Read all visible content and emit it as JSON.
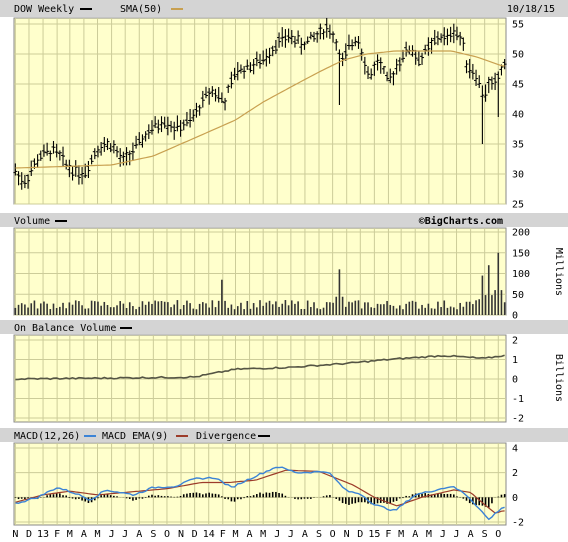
{
  "colors": {
    "plot_bg": "#ffffcc",
    "grid": "#cccc99",
    "header_bg": "#d4d4d4",
    "price_bar": "#000000",
    "sma": "#c8a050",
    "volume": "#333333",
    "obv": "#555544",
    "macd": "#3b83d6",
    "macd_ema": "#9c3c2a",
    "divergence": "#000000"
  },
  "header": {
    "symbol_label": "DOW Weekly",
    "sma_label": "SMA(50)",
    "date": "10/18/15"
  },
  "chart_data": [
    {
      "type": "ohlc",
      "name": "DOW Weekly",
      "series": [
        {
          "name": "DOW Weekly"
        },
        {
          "name": "SMA(50)"
        }
      ],
      "anchors_price": [
        [
          "2012-11-01",
          30.5
        ],
        [
          "2012-11-20",
          28.5
        ],
        [
          "2012-12-25",
          33
        ],
        [
          "2013-01-25",
          34
        ],
        [
          "2013-03-01",
          31
        ],
        [
          "2013-04-01",
          30
        ],
        [
          "2013-05-01",
          34.5
        ],
        [
          "2013-06-01",
          35
        ],
        [
          "2013-06-25",
          32
        ],
        [
          "2013-08-01",
          35
        ],
        [
          "2013-08-20",
          37
        ],
        [
          "2013-09-25",
          39
        ],
        [
          "2013-10-20",
          37.5
        ],
        [
          "2013-11-25",
          39
        ],
        [
          "2013-12-25",
          43
        ],
        [
          "2014-01-10",
          44
        ],
        [
          "2014-02-05",
          42
        ],
        [
          "2014-03-01",
          47
        ],
        [
          "2014-04-01",
          48
        ],
        [
          "2014-05-01",
          49
        ],
        [
          "2014-06-01",
          52
        ],
        [
          "2014-07-01",
          53
        ],
        [
          "2014-07-25",
          51.5
        ],
        [
          "2014-08-25",
          53
        ],
        [
          "2014-09-20",
          54.5
        ],
        [
          "2014-10-10",
          52
        ],
        [
          "2014-10-20",
          48
        ],
        [
          "2014-11-05",
          51
        ],
        [
          "2014-11-25",
          53
        ],
        [
          "2014-12-10",
          49
        ],
        [
          "2014-12-20",
          46
        ],
        [
          "2015-01-10",
          49
        ],
        [
          "2015-02-01",
          45
        ],
        [
          "2015-02-25",
          49
        ],
        [
          "2015-03-20",
          51
        ],
        [
          "2015-04-10",
          49
        ],
        [
          "2015-05-01",
          51
        ],
        [
          "2015-05-25",
          53
        ],
        [
          "2015-06-10",
          52.5
        ],
        [
          "2015-06-25",
          54
        ],
        [
          "2015-07-15",
          52
        ],
        [
          "2015-07-25",
          48
        ],
        [
          "2015-08-10",
          47
        ],
        [
          "2015-08-25",
          44
        ],
        [
          "2015-09-01",
          43
        ],
        [
          "2015-09-10",
          45
        ],
        [
          "2015-09-25",
          45
        ],
        [
          "2015-10-10",
          48
        ]
      ],
      "anchors_sma": [
        [
          "2012-11-01",
          31
        ],
        [
          "2013-06-01",
          31.5
        ],
        [
          "2013-09-01",
          33
        ],
        [
          "2013-12-01",
          36
        ],
        [
          "2014-03-01",
          39
        ],
        [
          "2014-05-01",
          42
        ],
        [
          "2014-07-01",
          44.5
        ],
        [
          "2014-09-01",
          47
        ],
        [
          "2014-10-25",
          49
        ],
        [
          "2014-12-15",
          50
        ],
        [
          "2015-02-15",
          50.5
        ],
        [
          "2015-05-01",
          50.5
        ],
        [
          "2015-06-20",
          50.5
        ],
        [
          "2015-08-15",
          49.5
        ],
        [
          "2015-10-10",
          48
        ]
      ],
      "spikes": [
        {
          "date": "2014-10-15",
          "low": 41.5
        },
        {
          "date": "2015-08-24",
          "low": 35
        },
        {
          "date": "2015-09-28",
          "low": 39.5
        }
      ],
      "y_ticks": [
        25,
        30,
        35,
        40,
        45,
        50,
        55
      ],
      "ylim": [
        25,
        56
      ]
    },
    {
      "type": "bar",
      "name": "Volume",
      "series": [
        {
          "name": "Volume"
        }
      ],
      "ylabel": "Millions",
      "y_ticks": [
        0,
        50,
        100,
        150,
        200
      ],
      "ylim": [
        0,
        200
      ],
      "baseline": 25,
      "spikes": [
        {
          "date": "2014-01-30",
          "value": 85
        },
        {
          "date": "2014-10-15",
          "value": 110
        },
        {
          "date": "2015-08-24",
          "value": 95
        },
        {
          "date": "2015-09-07",
          "value": 120
        },
        {
          "date": "2015-09-28",
          "value": 150
        }
      ],
      "watermark": "©BigCharts.com"
    },
    {
      "type": "line",
      "name": "On Balance Volume",
      "series": [
        {
          "name": "On Balance Volume"
        }
      ],
      "ylabel": "Billions",
      "y_ticks": [
        -2,
        -1,
        0,
        1,
        2
      ],
      "ylim": [
        -2,
        2
      ],
      "anchors": [
        [
          "2012-11-01",
          0
        ],
        [
          "2013-06-01",
          0.05
        ],
        [
          "2013-12-01",
          0.1
        ],
        [
          "2014-03-01",
          0.5
        ],
        [
          "2014-07-01",
          0.6
        ],
        [
          "2014-11-01",
          0.8
        ],
        [
          "2015-02-01",
          1.0
        ],
        [
          "2015-06-01",
          1.2
        ],
        [
          "2015-09-01",
          1.05
        ],
        [
          "2015-10-10",
          1.2
        ]
      ]
    },
    {
      "type": "line",
      "name": "MACD",
      "series": [
        {
          "name": "MACD(12,26)"
        },
        {
          "name": "MACD EMA(9)"
        },
        {
          "name": "Divergence"
        }
      ],
      "y_ticks": [
        -2,
        0,
        2,
        4
      ],
      "ylim": [
        -2,
        4
      ],
      "anchors_macd": [
        [
          "2012-11-01",
          -0.5
        ],
        [
          "2012-12-20",
          0
        ],
        [
          "2013-02-01",
          0.8
        ],
        [
          "2013-03-15",
          0.3
        ],
        [
          "2013-04-15",
          -0.2
        ],
        [
          "2013-05-20",
          0.6
        ],
        [
          "2013-06-20",
          0.4
        ],
        [
          "2013-07-20",
          0.2
        ],
        [
          "2013-09-01",
          0.8
        ],
        [
          "2013-10-20",
          0.9
        ],
        [
          "2013-12-01",
          1.5
        ],
        [
          "2014-01-15",
          1.6
        ],
        [
          "2014-02-20",
          0.8
        ],
        [
          "2014-04-01",
          1.5
        ],
        [
          "2014-06-01",
          2.5
        ],
        [
          "2014-07-15",
          2.0
        ],
        [
          "2014-09-20",
          2.1
        ],
        [
          "2014-11-01",
          0.5
        ],
        [
          "2014-12-01",
          0.3
        ],
        [
          "2015-01-01",
          -0.6
        ],
        [
          "2015-02-15",
          -1.1
        ],
        [
          "2015-04-01",
          0.2
        ],
        [
          "2015-06-20",
          0.9
        ],
        [
          "2015-07-20",
          0.3
        ],
        [
          "2015-08-10",
          -0.5
        ],
        [
          "2015-09-10",
          -1.8
        ],
        [
          "2015-10-10",
          -0.8
        ]
      ],
      "anchors_ema": [
        [
          "2012-11-01",
          -0.4
        ],
        [
          "2013-01-01",
          0.2
        ],
        [
          "2013-03-01",
          0.5
        ],
        [
          "2013-05-01",
          0.2
        ],
        [
          "2013-07-01",
          0.4
        ],
        [
          "2013-10-01",
          0.7
        ],
        [
          "2013-12-15",
          1.2
        ],
        [
          "2014-02-15",
          1.2
        ],
        [
          "2014-04-15",
          1.4
        ],
        [
          "2014-06-20",
          2.2
        ],
        [
          "2014-09-01",
          2.1
        ],
        [
          "2014-11-15",
          1.0
        ],
        [
          "2015-01-01",
          0.0
        ],
        [
          "2015-02-20",
          -0.7
        ],
        [
          "2015-04-15",
          0.0
        ],
        [
          "2015-06-25",
          0.6
        ],
        [
          "2015-08-01",
          0.4
        ],
        [
          "2015-09-01",
          -0.6
        ],
        [
          "2015-09-25",
          -1.3
        ],
        [
          "2015-10-10",
          -1.1
        ]
      ]
    }
  ],
  "panels": {
    "volume_label": "Volume",
    "obv_label": "On Balance Volume",
    "macd_label": "MACD(12,26)",
    "macd_ema_label": "MACD EMA(9)",
    "divergence_label": "Divergence",
    "watermark": "©BigCharts.com",
    "millions": "Millions",
    "billions": "Billions"
  },
  "x_axis": {
    "start": "2012-10-29",
    "end": "2015-10-18",
    "labels": [
      {
        "t": "N",
        "date": "2012-11-01"
      },
      {
        "t": "D",
        "date": "2012-12-01"
      },
      {
        "t": "13",
        "date": "2013-01-01"
      },
      {
        "t": "F",
        "date": "2013-02-01"
      },
      {
        "t": "M",
        "date": "2013-03-01"
      },
      {
        "t": "A",
        "date": "2013-04-01"
      },
      {
        "t": "M",
        "date": "2013-05-01"
      },
      {
        "t": "J",
        "date": "2013-06-01"
      },
      {
        "t": "J",
        "date": "2013-07-01"
      },
      {
        "t": "A",
        "date": "2013-08-01"
      },
      {
        "t": "S",
        "date": "2013-09-01"
      },
      {
        "t": "O",
        "date": "2013-10-01"
      },
      {
        "t": "N",
        "date": "2013-11-01"
      },
      {
        "t": "D",
        "date": "2013-12-01"
      },
      {
        "t": "14",
        "date": "2014-01-01"
      },
      {
        "t": "F",
        "date": "2014-02-01"
      },
      {
        "t": "M",
        "date": "2014-03-01"
      },
      {
        "t": "A",
        "date": "2014-04-01"
      },
      {
        "t": "M",
        "date": "2014-05-01"
      },
      {
        "t": "J",
        "date": "2014-06-01"
      },
      {
        "t": "J",
        "date": "2014-07-01"
      },
      {
        "t": "A",
        "date": "2014-08-01"
      },
      {
        "t": "S",
        "date": "2014-09-01"
      },
      {
        "t": "O",
        "date": "2014-10-01"
      },
      {
        "t": "N",
        "date": "2014-11-01"
      },
      {
        "t": "D",
        "date": "2014-12-01"
      },
      {
        "t": "15",
        "date": "2015-01-01"
      },
      {
        "t": "F",
        "date": "2015-02-01"
      },
      {
        "t": "M",
        "date": "2015-03-01"
      },
      {
        "t": "A",
        "date": "2015-04-01"
      },
      {
        "t": "M",
        "date": "2015-05-01"
      },
      {
        "t": "J",
        "date": "2015-06-01"
      },
      {
        "t": "J",
        "date": "2015-07-01"
      },
      {
        "t": "A",
        "date": "2015-08-01"
      },
      {
        "t": "S",
        "date": "2015-09-01"
      },
      {
        "t": "O",
        "date": "2015-10-01"
      }
    ]
  }
}
